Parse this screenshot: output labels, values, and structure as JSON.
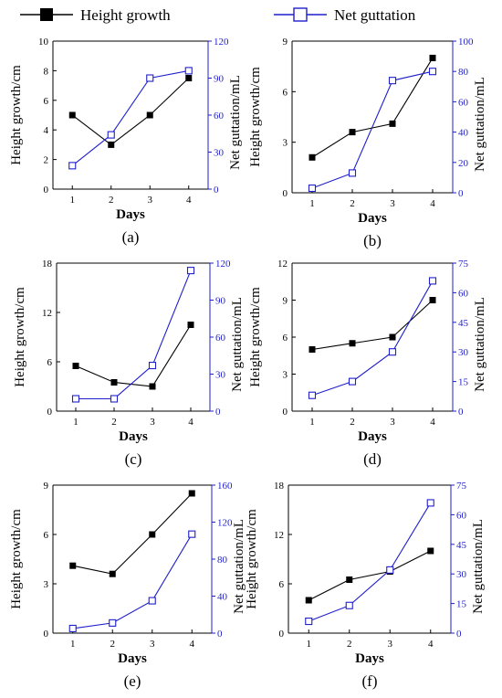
{
  "legend": {
    "placement": "top",
    "height_label": "Height growth",
    "guttation_label": "Net guttation"
  },
  "colors": {
    "height": "#000000",
    "guttation": "#1f1fcc",
    "axis": "#000000",
    "right_axis": "#1f1fcc"
  },
  "chart_data": [
    {
      "type": "line",
      "panel_label": "(a)",
      "xlabel": "Days",
      "ylabel": "Height growth/cm",
      "y2label": "Net guttation/mL",
      "x": [
        1,
        2,
        3,
        4
      ],
      "xlim": [
        0.5,
        4.5
      ],
      "ylim": [
        0,
        10
      ],
      "y2lim": [
        0,
        120
      ],
      "yticks": [
        0,
        2,
        4,
        6,
        8,
        10
      ],
      "y2ticks": [
        0,
        30,
        60,
        90,
        120
      ],
      "series": [
        {
          "axis": "left",
          "values": [
            5,
            3,
            5,
            7.5
          ]
        },
        {
          "axis": "right",
          "values": [
            19,
            44,
            90,
            96
          ]
        }
      ]
    },
    {
      "type": "line",
      "panel_label": "(b)",
      "xlabel": "Days",
      "ylabel": "Height growth/cm",
      "y2label": "Net guttation/mL",
      "x": [
        1,
        2,
        3,
        4
      ],
      "xlim": [
        0.5,
        4.5
      ],
      "ylim": [
        0,
        9
      ],
      "y2lim": [
        0,
        100
      ],
      "yticks": [
        0,
        3,
        6,
        9
      ],
      "y2ticks": [
        0,
        20,
        40,
        60,
        80,
        100
      ],
      "series": [
        {
          "axis": "left",
          "values": [
            2.1,
            3.6,
            4.1,
            8
          ]
        },
        {
          "axis": "right",
          "values": [
            3,
            13,
            74,
            80
          ]
        }
      ]
    },
    {
      "type": "line",
      "panel_label": "(c)",
      "xlabel": "Days",
      "ylabel": "Height growth/cm",
      "y2label": "Net guttation/mL",
      "x": [
        1,
        2,
        3,
        4
      ],
      "xlim": [
        0.5,
        4.5
      ],
      "ylim": [
        0,
        18
      ],
      "y2lim": [
        0,
        120
      ],
      "yticks": [
        0,
        6,
        12,
        18
      ],
      "y2ticks": [
        0,
        30,
        60,
        90,
        120
      ],
      "series": [
        {
          "axis": "left",
          "values": [
            5.5,
            3.5,
            3,
            10.5
          ]
        },
        {
          "axis": "right",
          "values": [
            10,
            10,
            37,
            114
          ]
        }
      ]
    },
    {
      "type": "line",
      "panel_label": "(d)",
      "xlabel": "Days",
      "ylabel": "Height growth/cm",
      "y2label": "Net guttation/mL",
      "x": [
        1,
        2,
        3,
        4
      ],
      "xlim": [
        0.5,
        4.5
      ],
      "ylim": [
        0,
        12
      ],
      "y2lim": [
        0,
        75
      ],
      "yticks": [
        0,
        3,
        6,
        9,
        12
      ],
      "y2ticks": [
        0,
        15,
        30,
        45,
        60,
        75
      ],
      "series": [
        {
          "axis": "left",
          "values": [
            5,
            5.5,
            6,
            9
          ]
        },
        {
          "axis": "right",
          "values": [
            8,
            15,
            30,
            66
          ]
        }
      ]
    },
    {
      "type": "line",
      "panel_label": "(e)",
      "xlabel": "Days",
      "ylabel": "Height growth/cm",
      "y2label": "Net guttation/mL",
      "x": [
        1,
        2,
        3,
        4
      ],
      "xlim": [
        0.5,
        4.5
      ],
      "ylim": [
        0,
        9
      ],
      "y2lim": [
        0,
        160
      ],
      "yticks": [
        0,
        3,
        6,
        9
      ],
      "y2ticks": [
        0,
        40,
        80,
        120,
        160
      ],
      "series": [
        {
          "axis": "left",
          "values": [
            4.1,
            3.6,
            6,
            8.5
          ]
        },
        {
          "axis": "right",
          "values": [
            5,
            11,
            35,
            107
          ]
        }
      ]
    },
    {
      "type": "line",
      "panel_label": "(f)",
      "xlabel": "Days",
      "ylabel": "Height growth/cm",
      "y2label": "Net guttation/mL",
      "x": [
        1,
        2,
        3,
        4
      ],
      "xlim": [
        0.5,
        4.5
      ],
      "ylim": [
        0,
        18
      ],
      "y2lim": [
        0,
        75
      ],
      "yticks": [
        0,
        6,
        12,
        18
      ],
      "y2ticks": [
        0,
        15,
        30,
        45,
        60,
        75
      ],
      "series": [
        {
          "axis": "left",
          "values": [
            4,
            6.5,
            7.5,
            10
          ]
        },
        {
          "axis": "right",
          "values": [
            6,
            14,
            32,
            66
          ]
        }
      ]
    }
  ]
}
